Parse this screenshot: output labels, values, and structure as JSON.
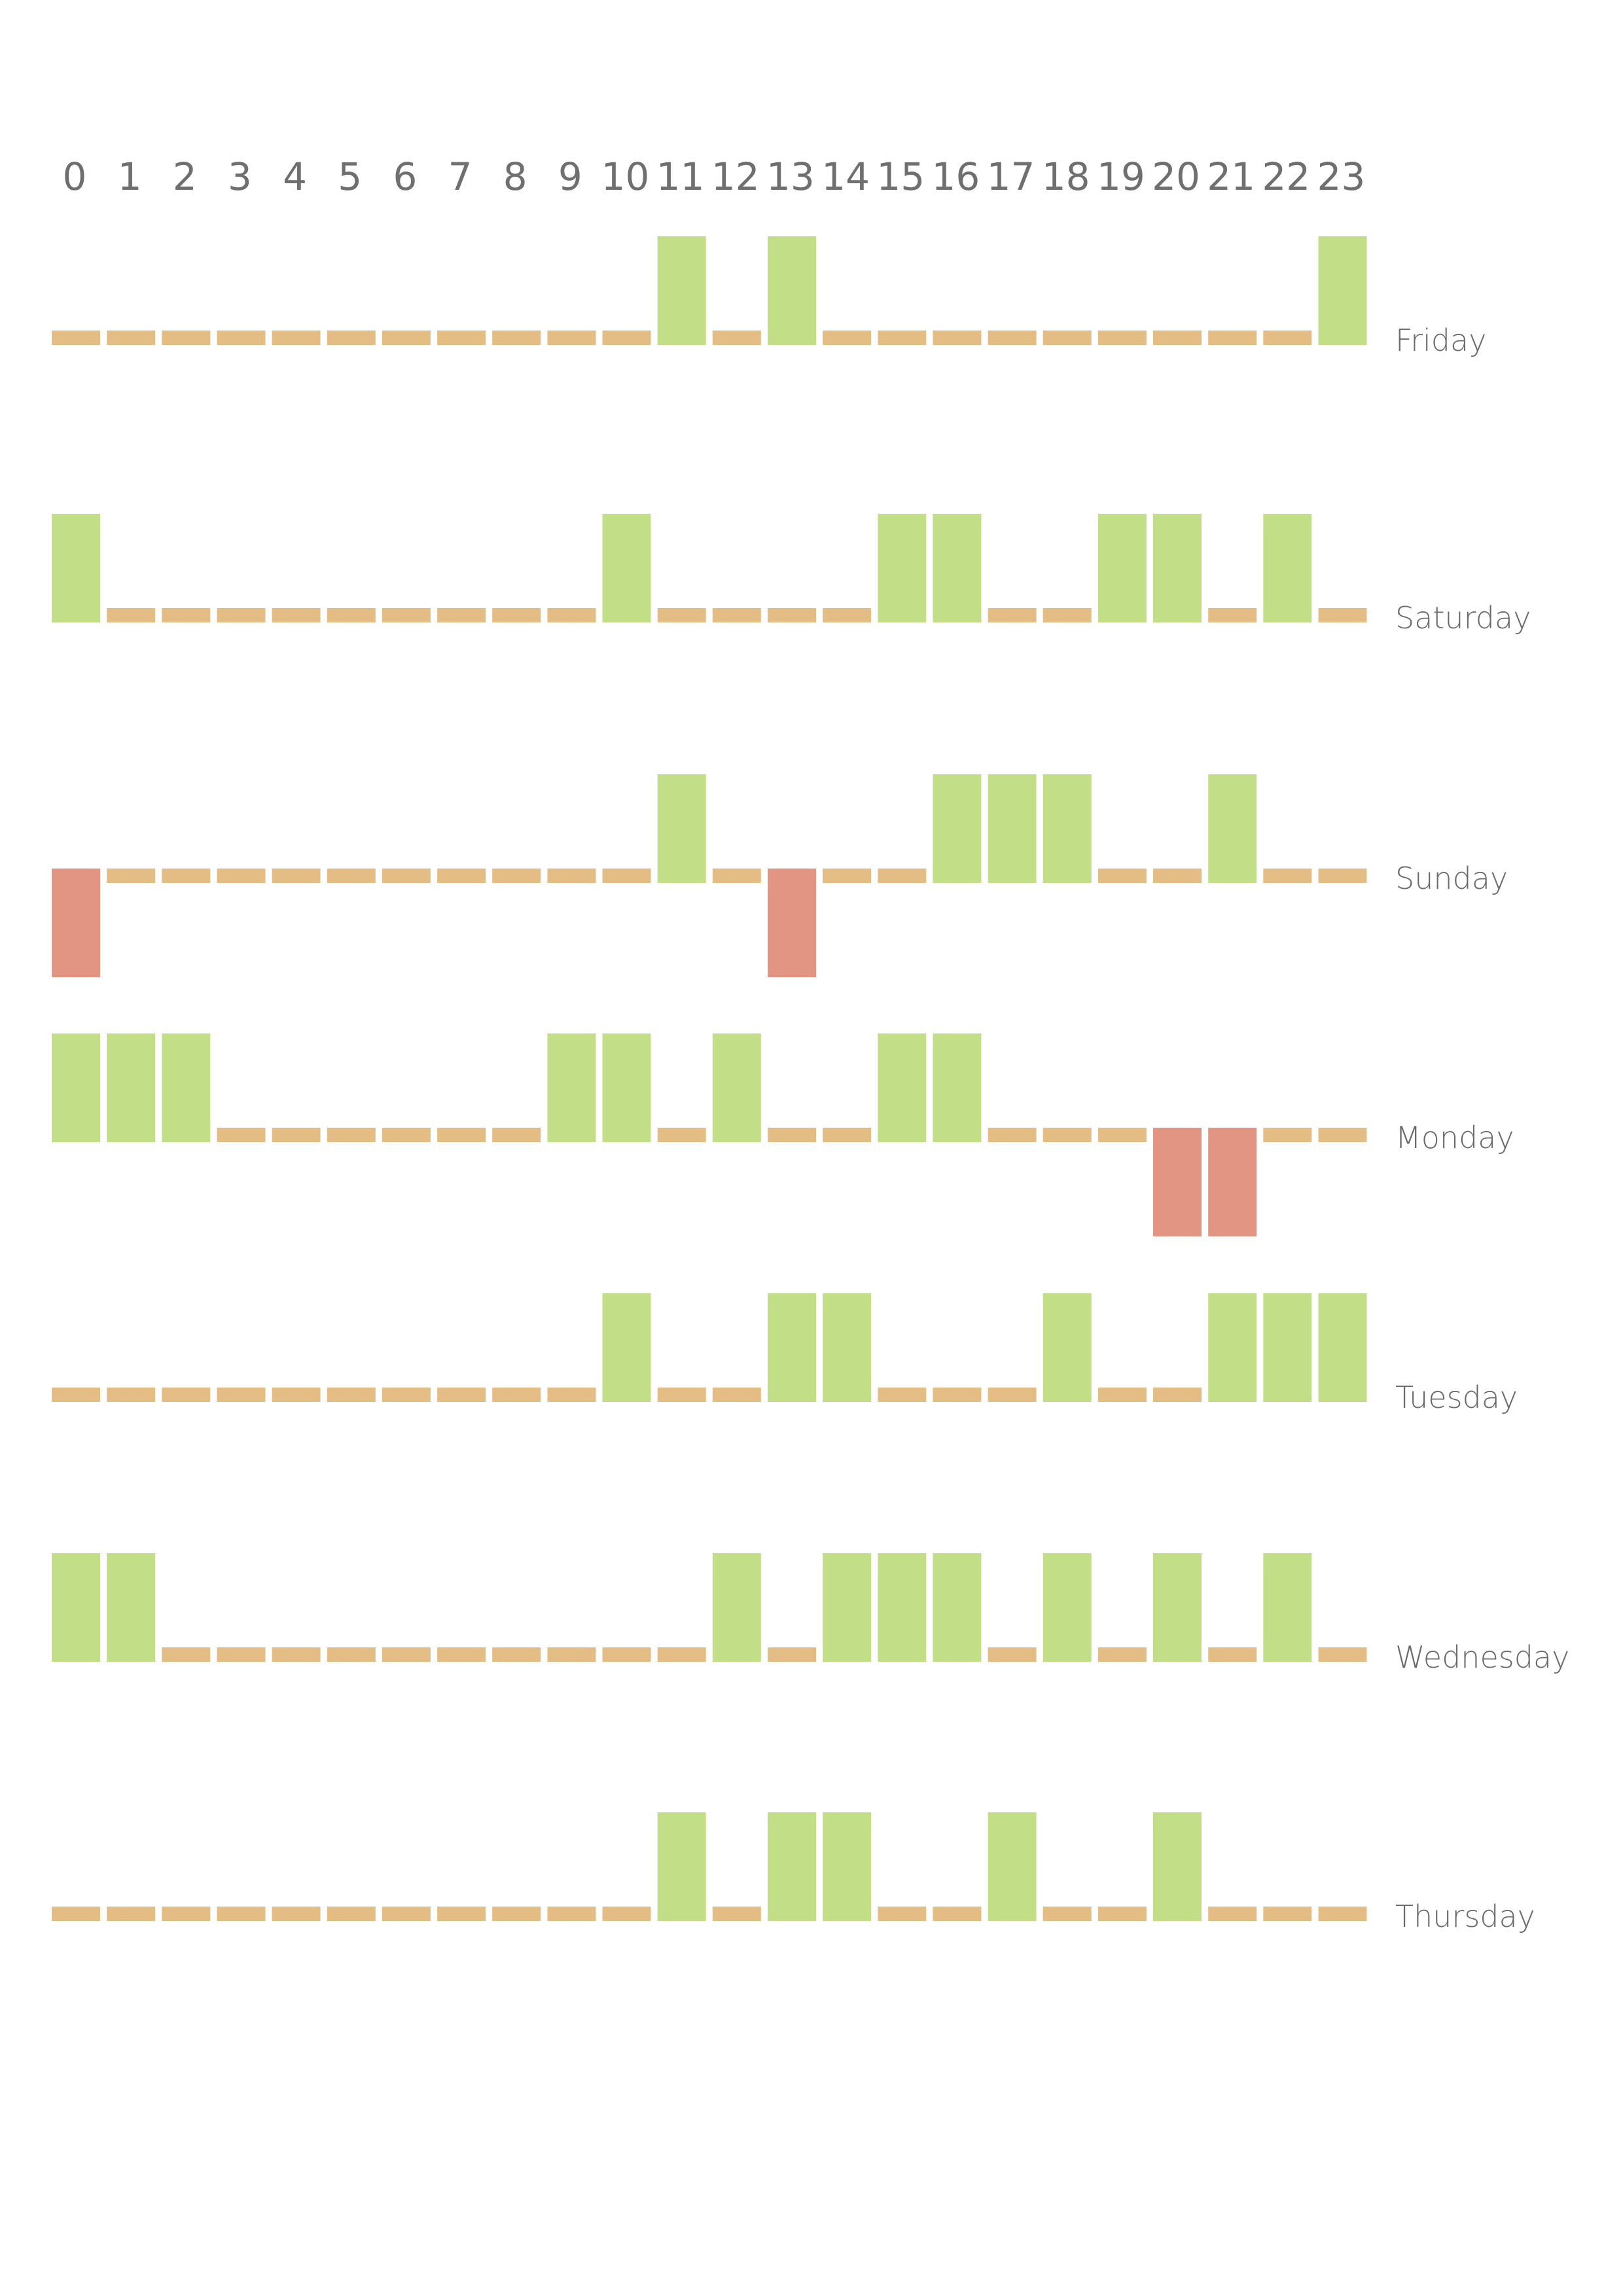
{
  "chart_data": {
    "type": "bar",
    "title": "",
    "xlabel": "",
    "ylabel": "",
    "legend": "none",
    "grid": false,
    "ylim": [
      -1,
      1
    ],
    "categories": [
      "0",
      "1",
      "2",
      "3",
      "4",
      "5",
      "6",
      "7",
      "8",
      "9",
      "10",
      "11",
      "12",
      "13",
      "14",
      "15",
      "16",
      "17",
      "18",
      "19",
      "20",
      "21",
      "22",
      "23"
    ],
    "colors": {
      "positive": "#c2df87",
      "zero": "#e4bd84",
      "negative": "#e39583",
      "hour_label": "#6f6f6f",
      "day_label": "#6a6a6a"
    },
    "series": [
      {
        "name": "Friday",
        "values": [
          0,
          0,
          0,
          0,
          0,
          0,
          0,
          0,
          0,
          0,
          0,
          1,
          0,
          1,
          0,
          0,
          0,
          0,
          0,
          0,
          0,
          0,
          0,
          1
        ]
      },
      {
        "name": "Saturday",
        "values": [
          1,
          0,
          0,
          0,
          0,
          0,
          0,
          0,
          0,
          0,
          1,
          0,
          0,
          0,
          0,
          1,
          1,
          0,
          0,
          1,
          1,
          0,
          1,
          0
        ]
      },
      {
        "name": "Sunday",
        "values": [
          -1,
          0,
          0,
          0,
          0,
          0,
          0,
          0,
          0,
          0,
          0,
          1,
          0,
          -1,
          0,
          0,
          1,
          1,
          1,
          0,
          0,
          1,
          0,
          0
        ]
      },
      {
        "name": "Monday",
        "values": [
          1,
          1,
          1,
          0,
          0,
          0,
          0,
          0,
          0,
          1,
          1,
          0,
          1,
          0,
          0,
          1,
          1,
          0,
          0,
          0,
          -1,
          -1,
          0,
          0
        ]
      },
      {
        "name": "Tuesday",
        "values": [
          0,
          0,
          0,
          0,
          0,
          0,
          0,
          0,
          0,
          0,
          1,
          0,
          0,
          1,
          1,
          0,
          0,
          0,
          1,
          0,
          0,
          1,
          1,
          1
        ]
      },
      {
        "name": "Wednesday",
        "values": [
          1,
          1,
          0,
          0,
          0,
          0,
          0,
          0,
          0,
          0,
          0,
          0,
          1,
          0,
          1,
          1,
          1,
          0,
          1,
          0,
          1,
          0,
          1,
          0
        ]
      },
      {
        "name": "Thursday",
        "values": [
          0,
          0,
          0,
          0,
          0,
          0,
          0,
          0,
          0,
          0,
          0,
          1,
          0,
          1,
          1,
          0,
          0,
          1,
          0,
          0,
          1,
          0,
          0,
          0
        ]
      }
    ]
  }
}
